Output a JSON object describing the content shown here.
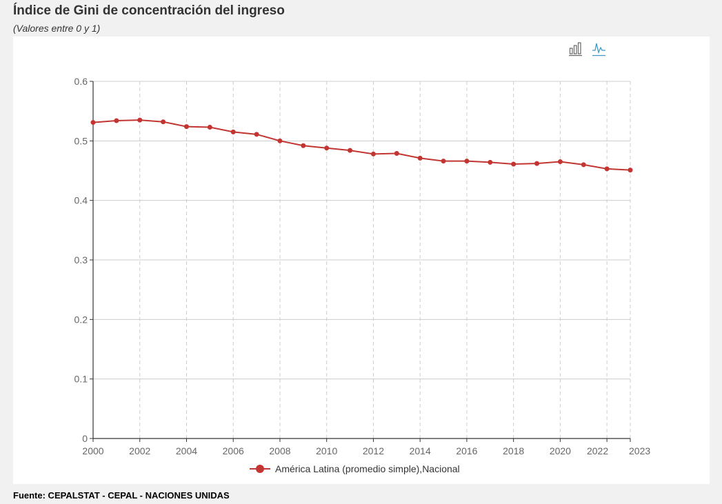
{
  "header": {
    "title": "Índice de Gini de concentración del ingreso",
    "subtitle": "(Valores entre 0 y 1)"
  },
  "toolbox": {
    "bar_icon": "bar-chart-icon",
    "line_icon": "line-chart-icon"
  },
  "footer": {
    "source": "Fuente: CEPALSTAT - CEPAL - NACIONES UNIDAS"
  },
  "colors": {
    "series": "#c23531",
    "axis": "#333333",
    "grid": "#cccccc",
    "tick_label": "#666666",
    "toolbox_inactive": "#666666",
    "toolbox_active": "#3e98c5"
  },
  "chart_data": {
    "type": "line",
    "title": "Índice de Gini de concentración del ingreso",
    "subtitle": "(Valores entre 0 y 1)",
    "xlabel": "",
    "ylabel": "",
    "x": [
      2000,
      2001,
      2002,
      2003,
      2004,
      2005,
      2006,
      2007,
      2008,
      2009,
      2010,
      2011,
      2012,
      2013,
      2014,
      2015,
      2016,
      2017,
      2018,
      2019,
      2020,
      2021,
      2022,
      2023
    ],
    "x_tick_labels": [
      "2000",
      "2002",
      "2004",
      "2006",
      "2008",
      "2010",
      "2012",
      "2014",
      "2016",
      "2018",
      "2020",
      "2022",
      "2023"
    ],
    "xlim": [
      2000,
      2023
    ],
    "ylim": [
      0,
      0.6
    ],
    "y_ticks": [
      "0",
      "0.1",
      "0.2",
      "0.3",
      "0.4",
      "0.5",
      "0.6"
    ],
    "grid": true,
    "legend_position": "bottom-center",
    "series": [
      {
        "name": "América Latina (promedio simple),Nacional",
        "values": [
          0.531,
          0.534,
          0.535,
          0.532,
          0.524,
          0.523,
          0.515,
          0.511,
          0.5,
          0.492,
          0.488,
          0.484,
          0.478,
          0.479,
          0.471,
          0.466,
          0.466,
          0.464,
          0.461,
          0.462,
          0.465,
          0.46,
          0.453,
          0.451
        ]
      }
    ]
  }
}
